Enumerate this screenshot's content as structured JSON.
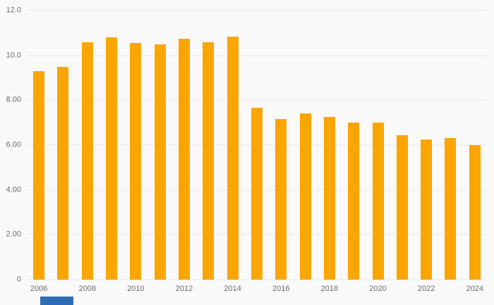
{
  "chart_data": {
    "type": "bar",
    "title": "",
    "xlabel": "",
    "ylabel": "",
    "categories": [
      "2006",
      "2007",
      "2008",
      "2009",
      "2010",
      "2011",
      "2012",
      "2013",
      "2014",
      "2015",
      "2016",
      "2017",
      "2018",
      "2019",
      "2020",
      "2021",
      "2022",
      "2023",
      "2024"
    ],
    "values": [
      9.3,
      9.5,
      10.6,
      10.8,
      10.55,
      10.5,
      10.75,
      10.6,
      10.85,
      7.65,
      7.15,
      7.4,
      7.25,
      7.0,
      7.0,
      6.45,
      6.25,
      6.3,
      6.0
    ],
    "ylim": [
      0,
      12
    ],
    "yticks": [
      {
        "value": 0,
        "label": "0"
      },
      {
        "value": 2,
        "label": "2.00"
      },
      {
        "value": 4,
        "label": "4.00"
      },
      {
        "value": 6,
        "label": "6.00"
      },
      {
        "value": 8,
        "label": "8.00"
      },
      {
        "value": 10,
        "label": "10.0"
      },
      {
        "value": 12,
        "label": "12.0"
      }
    ],
    "xtick_labels": [
      "2006",
      "2008",
      "2010",
      "2012",
      "2014",
      "2016",
      "2018",
      "2020",
      "2022",
      "2024"
    ],
    "grid": true,
    "legend": "none"
  },
  "colors": {
    "background": "#f9f9f9",
    "bar": "#f9a602",
    "gridline": "#e7e7e7",
    "axis_label": "#6b6b6b",
    "badge": "#2e6db4"
  }
}
